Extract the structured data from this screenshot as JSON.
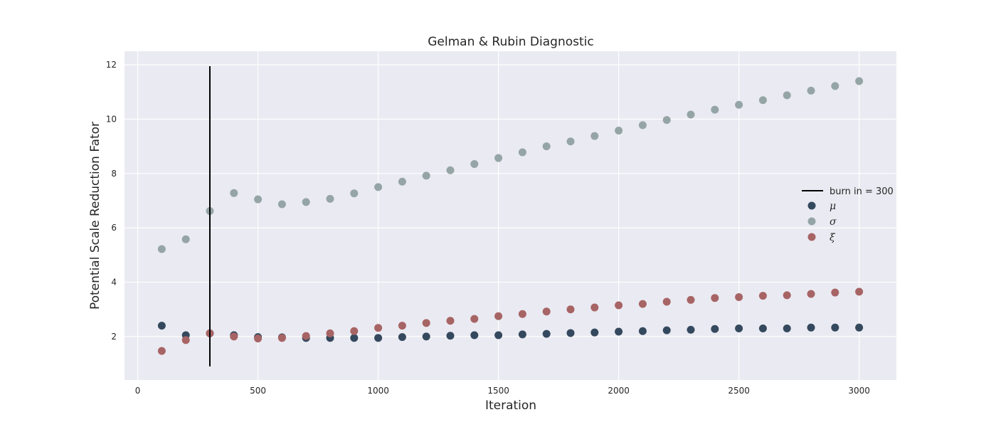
{
  "chart_data": {
    "type": "scatter",
    "title": "Gelman & Rubin Diagnostic",
    "xlabel": "Iteration",
    "ylabel": "Potential Scale Reduction Fator",
    "xlim": [
      -55,
      3155
    ],
    "ylim": [
      0.4,
      12.5
    ],
    "xticks": [
      0,
      500,
      1000,
      1500,
      2000,
      2500,
      3000
    ],
    "yticks": [
      2,
      4,
      6,
      8,
      10,
      12
    ],
    "grid": true,
    "legend_position": "center-right",
    "x": [
      100,
      200,
      300,
      400,
      500,
      600,
      700,
      800,
      900,
      1000,
      1100,
      1200,
      1300,
      1400,
      1500,
      1600,
      1700,
      1800,
      1900,
      2000,
      2100,
      2200,
      2300,
      2400,
      2500,
      2600,
      2700,
      2800,
      2900,
      3000
    ],
    "series": [
      {
        "name": "μ",
        "color": "#34495e",
        "values": [
          2.4,
          2.05,
          2.12,
          2.05,
          1.98,
          1.97,
          1.95,
          1.95,
          1.95,
          1.95,
          1.98,
          2.0,
          2.03,
          2.05,
          2.05,
          2.08,
          2.1,
          2.13,
          2.15,
          2.18,
          2.2,
          2.23,
          2.25,
          2.28,
          2.3,
          2.3,
          2.3,
          2.33,
          2.33,
          2.33
        ]
      },
      {
        "name": "σ",
        "color": "#95a5a6",
        "values": [
          5.22,
          5.58,
          6.62,
          7.28,
          7.05,
          6.87,
          6.95,
          7.07,
          7.27,
          7.5,
          7.7,
          7.92,
          8.12,
          8.35,
          8.57,
          8.78,
          9.0,
          9.18,
          9.38,
          9.58,
          9.78,
          9.97,
          10.17,
          10.35,
          10.53,
          10.7,
          10.88,
          11.05,
          11.22,
          11.4
        ]
      },
      {
        "name": "ξ",
        "color": "#a76464",
        "values": [
          1.47,
          1.87,
          2.12,
          2.0,
          1.93,
          1.95,
          2.02,
          2.12,
          2.2,
          2.32,
          2.4,
          2.5,
          2.58,
          2.65,
          2.75,
          2.83,
          2.92,
          3.0,
          3.07,
          3.15,
          3.2,
          3.28,
          3.35,
          3.42,
          3.45,
          3.5,
          3.52,
          3.57,
          3.62,
          3.65
        ]
      }
    ],
    "vline": {
      "label": "burn in = 300",
      "x": 300,
      "ymin": 0.9,
      "ymax": 11.95,
      "color": "#000000"
    }
  }
}
